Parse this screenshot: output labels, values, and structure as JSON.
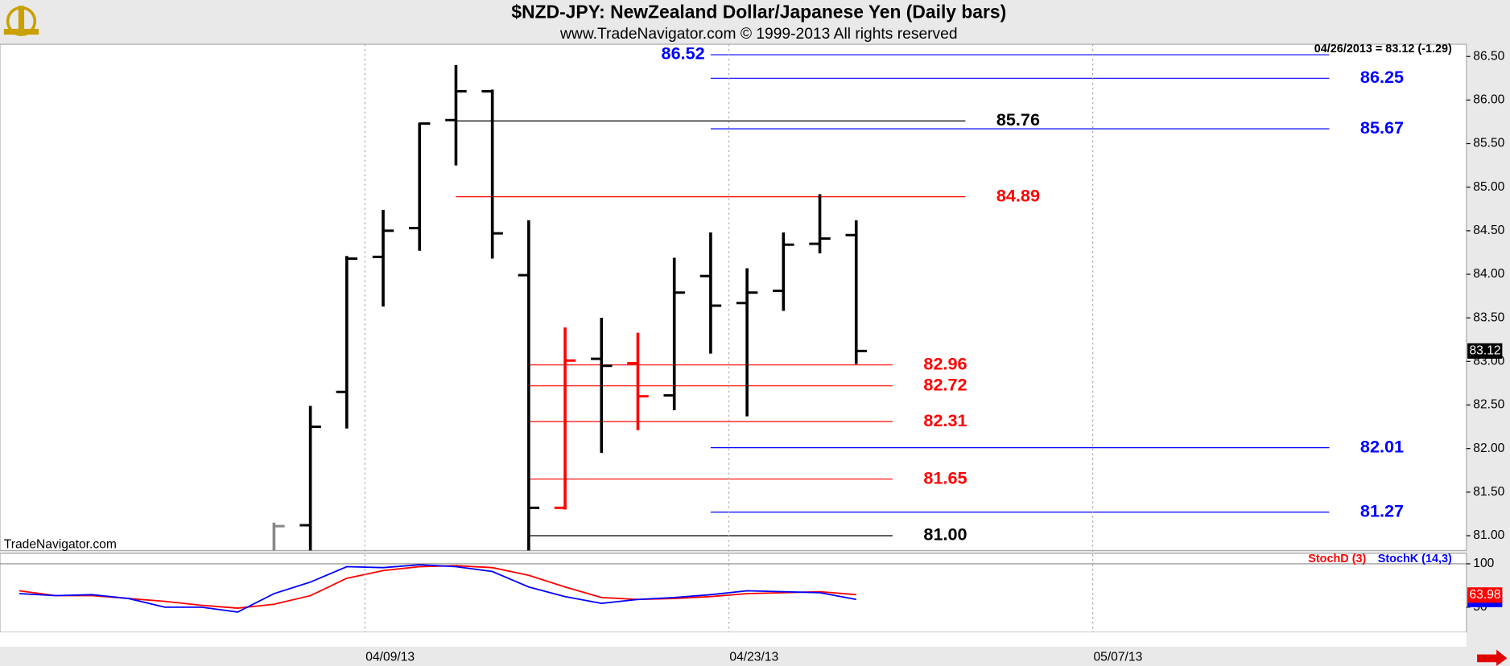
{
  "header": {
    "title": "$NZD-JPY:  NewZealand Dollar/Japanese Yen  (Daily bars)",
    "subtitle": "www.TradeNavigator.com © 1999-2013 All rights reserved",
    "watermark": "TradeNavigator.com"
  },
  "chart_data": [
    {
      "type": "ohlc",
      "info": "04/26/2013 = 83.12 (-1.29)",
      "last_price": {
        "value": 83.12,
        "label": "83.12"
      },
      "x": [
        0,
        1,
        2,
        3,
        4,
        5,
        6,
        7,
        8,
        9,
        10,
        11,
        12,
        13,
        14,
        15,
        16
      ],
      "open": [
        null,
        81.12,
        82.65,
        84.2,
        84.53,
        85.77,
        86.1,
        83.99,
        81.32,
        83.03,
        82.98,
        82.61,
        83.98,
        83.67,
        83.81,
        84.35,
        84.45
      ],
      "high": [
        81.15,
        82.49,
        84.21,
        84.74,
        85.74,
        86.4,
        86.12,
        84.62,
        83.39,
        83.5,
        83.33,
        84.19,
        84.48,
        84.07,
        84.48,
        84.92,
        84.62
      ],
      "low": [
        80.8,
        80.8,
        82.23,
        83.63,
        84.27,
        85.25,
        84.18,
        80.8,
        81.3,
        81.95,
        82.21,
        82.44,
        83.09,
        82.37,
        83.58,
        84.24,
        82.97
      ],
      "close": [
        81.11,
        82.25,
        84.18,
        84.5,
        85.73,
        86.1,
        84.47,
        81.32,
        83.01,
        82.95,
        82.6,
        83.79,
        83.64,
        83.79,
        84.34,
        84.41,
        83.12
      ],
      "colors": [
        "#888888",
        "#000000",
        "#000000",
        "#000000",
        "#000000",
        "#000000",
        "#000000",
        "#000000",
        "#ff0000",
        "#000000",
        "#ff0000",
        "#000000",
        "#000000",
        "#000000",
        "#000000",
        "#000000",
        "#000000"
      ],
      "levels": [
        {
          "value": 86.52,
          "label": "86.52",
          "color": "#0000ff",
          "x": [
            12,
            29
          ],
          "label_side": "left"
        },
        {
          "value": 86.25,
          "label": "86.25",
          "color": "#0000ff",
          "x": [
            12,
            29
          ],
          "label_side": "right"
        },
        {
          "value": 85.76,
          "label": "85.76",
          "color": "#000000",
          "x": [
            5,
            19
          ],
          "label_side": "right"
        },
        {
          "value": 85.67,
          "label": "85.67",
          "color": "#0000ff",
          "x": [
            12,
            29
          ],
          "label_side": "right"
        },
        {
          "value": 84.89,
          "label": "84.89",
          "color": "#ff0000",
          "x": [
            5,
            19
          ],
          "label_side": "right"
        },
        {
          "value": 82.96,
          "label": "82.96",
          "color": "#ff0000",
          "x": [
            7,
            17
          ],
          "label_side": "right"
        },
        {
          "value": 82.72,
          "label": "82.72",
          "color": "#ff0000",
          "x": [
            7,
            17
          ],
          "label_side": "right"
        },
        {
          "value": 82.31,
          "label": "82.31",
          "color": "#ff0000",
          "x": [
            7,
            17
          ],
          "label_side": "right"
        },
        {
          "value": 82.01,
          "label": "82.01",
          "color": "#0000ff",
          "x": [
            12,
            29
          ],
          "label_side": "right"
        },
        {
          "value": 81.65,
          "label": "81.65",
          "color": "#ff0000",
          "x": [
            7,
            17
          ],
          "label_side": "right"
        },
        {
          "value": 81.27,
          "label": "81.27",
          "color": "#0000ff",
          "x": [
            12,
            29
          ],
          "label_side": "right"
        },
        {
          "value": 81.0,
          "label": "81.00",
          "color": "#000000",
          "x": [
            7,
            17
          ],
          "label_side": "right"
        }
      ],
      "xlim": [
        -7.53,
        32.77
      ],
      "ylim": [
        80.83,
        86.64
      ],
      "yticks": [
        {
          "value": 81,
          "label": "81.00"
        },
        {
          "value": 81.5,
          "label": "81.50"
        },
        {
          "value": 82,
          "label": "82.00"
        },
        {
          "value": 82.5,
          "label": "82.50"
        },
        {
          "value": 83,
          "label": "83.00"
        },
        {
          "value": 83.5,
          "label": "83.50"
        },
        {
          "value": 84,
          "label": "84.00"
        },
        {
          "value": 84.5,
          "label": "84.50"
        },
        {
          "value": 85,
          "label": "85.00"
        },
        {
          "value": 85.5,
          "label": "85.50"
        },
        {
          "value": 86,
          "label": "86.00"
        },
        {
          "value": 86.5,
          "label": "86.50"
        }
      ]
    },
    {
      "type": "line",
      "x": [
        -7,
        -6,
        -5,
        -4,
        -3,
        -2,
        -1,
        0,
        1,
        2,
        3,
        4,
        5,
        6,
        7,
        8,
        9,
        10,
        11,
        12,
        13,
        14,
        15,
        16
      ],
      "series": [
        {
          "name": "StochD (3)",
          "color": "#ff0000",
          "values": [
            68.9,
            63.3,
            63.3,
            60,
            56.7,
            52.2,
            48.9,
            53.3,
            63.3,
            83.3,
            92.2,
            96.7,
            97.8,
            95.6,
            86.7,
            73.3,
            61.1,
            58.9,
            60,
            62.2,
            65.6,
            66.7,
            67.8,
            64.4
          ]
        },
        {
          "name": "StochK (14,3)",
          "color": "#0000ff",
          "values": [
            65.6,
            63.3,
            64.4,
            60,
            50,
            50,
            44.4,
            65.6,
            78.9,
            96.7,
            95.6,
            98.9,
            96.7,
            91.1,
            73.3,
            62.2,
            54.4,
            58.9,
            61.1,
            64.4,
            68.9,
            67.8,
            66.7,
            58.9
          ]
        }
      ],
      "last_value": {
        "value": 63.98,
        "label": "63.98"
      },
      "xlim": [
        -7.53,
        32.77
      ],
      "xticks": [
        {
          "value": 2.5,
          "label": "04/09/13"
        },
        {
          "value": 12.5,
          "label": "04/23/13"
        },
        {
          "value": 22.5,
          "label": "05/07/13"
        }
      ],
      "ylim": [
        21,
        112
      ],
      "yticks": [
        100,
        50
      ]
    }
  ]
}
